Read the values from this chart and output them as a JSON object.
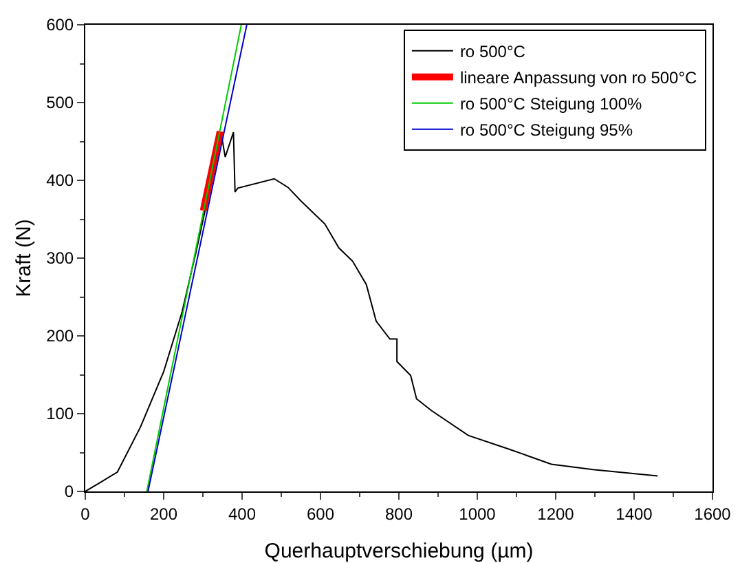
{
  "chart_data": {
    "type": "line",
    "xlabel": "Querhauptverschiebung (µm)",
    "ylabel": "Kraft (N)",
    "xlim": [
      0,
      1600
    ],
    "ylim": [
      0,
      600
    ],
    "xticks": [
      0,
      200,
      400,
      600,
      800,
      1000,
      1200,
      1400,
      1600
    ],
    "yticks": [
      0,
      100,
      200,
      300,
      400,
      500,
      600
    ],
    "grid": false,
    "legend": "top right",
    "marker": "none",
    "line_style": "solid",
    "series": [
      {
        "name": "ro 500°C",
        "color": "#000000",
        "x": [
          0,
          40,
          82,
          141,
          200,
          247,
          283,
          306,
          346,
          357,
          378,
          382,
          389,
          482,
          517,
          551,
          611,
          647,
          682,
          717,
          742,
          777,
          795,
          795,
          830,
          845,
          883,
          977,
          1083,
          1189,
          1295,
          1460
        ],
        "values": [
          0,
          12,
          25,
          83,
          154,
          231,
          309,
          362,
          462,
          430,
          462,
          385,
          390,
          402,
          391,
          373,
          344,
          313,
          296,
          266,
          219,
          196,
          196,
          167,
          149,
          119,
          104,
          72,
          54,
          35,
          28,
          20
        ]
      },
      {
        "name": "lineare Anpassung von ro 500°C",
        "color": "#ff0000",
        "x": [
          301,
          344
        ],
        "values": [
          361,
          463
        ]
      },
      {
        "name": "ro 500°C Steigung 100%",
        "color": "#00cc00",
        "x": [
          157,
          398
        ],
        "values": [
          0,
          600
        ]
      },
      {
        "name": "ro 500°C Steigung 95%",
        "color": "#0000cc",
        "x": [
          160,
          412
        ],
        "values": [
          0,
          600
        ]
      }
    ]
  }
}
